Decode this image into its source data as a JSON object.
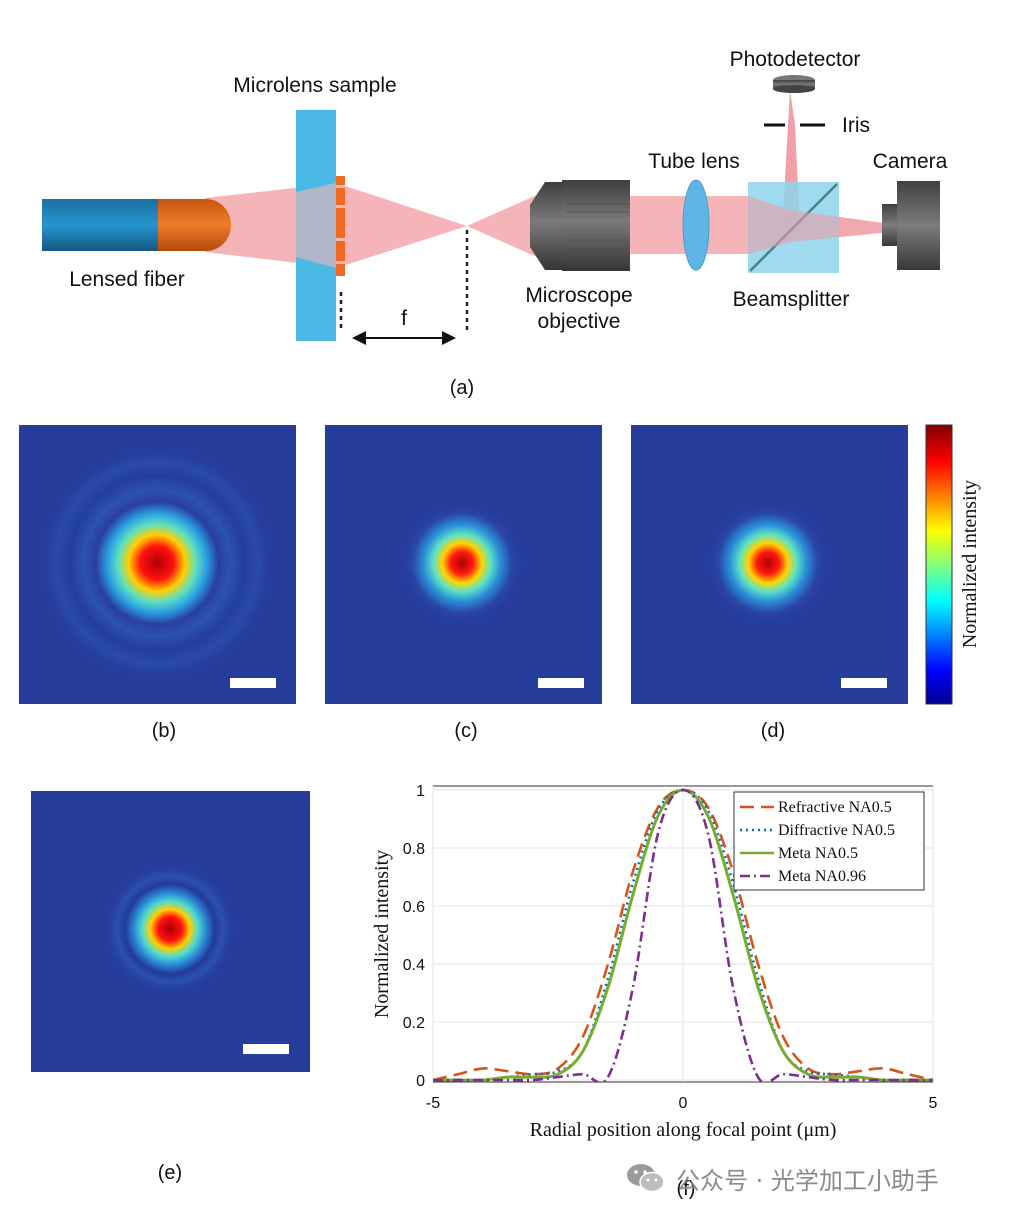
{
  "panel_a": {
    "labels": {
      "microlens_sample": "Microlens sample",
      "lensed_fiber": "Lensed fiber",
      "focal_length": "f",
      "microscope_objective_line1": "Microscope",
      "microscope_objective_line2": "objective",
      "tube_lens": "Tube lens",
      "photodetector": "Photodetector",
      "iris": "Iris",
      "camera": "Camera",
      "beamsplitter": "Beamsplitter"
    },
    "colors": {
      "beam": "#f4b4b8",
      "fiber_body": "#1a80b5",
      "fiber_tip": "#e86d1c",
      "sample": "#4ab9e6",
      "lens_pattern": "#f06a24",
      "objective": "#5a5a5a",
      "beamsplitter": "#8fd4ec"
    }
  },
  "captions": {
    "a": "(a)",
    "b": "(b)",
    "c": "(c)",
    "d": "(d)",
    "e": "(e)",
    "f": "(f)"
  },
  "colorbar": {
    "label": "Normalized intensity",
    "colormap": "jet"
  },
  "chart_data": {
    "type": "line",
    "xlabel": "Radial position along focal point (μm)",
    "ylabel": "Normalized intensity",
    "xlim": [
      -5,
      5
    ],
    "ylim": [
      0,
      1
    ],
    "xticks": [
      -5,
      0,
      5
    ],
    "yticks": [
      0,
      0.2,
      0.4,
      0.6,
      0.8,
      1
    ],
    "ytick_labels": [
      "0",
      "0.2",
      "0.4",
      "0.6",
      "0.8",
      "1"
    ],
    "grid": true,
    "legend_position": "top-right",
    "x": [
      -5,
      -4.5,
      -4,
      -3.5,
      -3,
      -2.5,
      -2,
      -1.5,
      -1,
      -0.5,
      0,
      0.5,
      1,
      1.5,
      2,
      2.5,
      3,
      3.5,
      4,
      4.5,
      5
    ],
    "series": [
      {
        "name": "Refractive NA0.5",
        "color": "#d95319",
        "style": "dashed",
        "values": [
          0.0,
          0.02,
          0.04,
          0.03,
          0.02,
          0.04,
          0.15,
          0.4,
          0.72,
          0.94,
          1.0,
          0.94,
          0.72,
          0.4,
          0.15,
          0.04,
          0.02,
          0.03,
          0.04,
          0.02,
          0.0
        ]
      },
      {
        "name": "Diffractive NA0.5",
        "color": "#0072bd",
        "style": "dotted",
        "values": [
          0.0,
          0.0,
          0.0,
          0.01,
          0.02,
          0.03,
          0.1,
          0.35,
          0.68,
          0.93,
          1.0,
          0.93,
          0.68,
          0.35,
          0.1,
          0.03,
          0.02,
          0.01,
          0.0,
          0.0,
          0.0
        ]
      },
      {
        "name": "Meta NA0.5",
        "color": "#77ac30",
        "style": "solid",
        "values": [
          0.0,
          0.0,
          0.0,
          0.01,
          0.01,
          0.02,
          0.1,
          0.32,
          0.64,
          0.91,
          1.0,
          0.91,
          0.64,
          0.32,
          0.1,
          0.02,
          0.01,
          0.01,
          0.0,
          0.0,
          0.0
        ]
      },
      {
        "name": "Meta NA0.96",
        "color": "#7e2f8e",
        "style": "dashdot",
        "values": [
          0.0,
          0.0,
          0.0,
          0.0,
          0.0,
          0.01,
          0.02,
          0.01,
          0.32,
          0.85,
          1.0,
          0.85,
          0.32,
          0.01,
          0.02,
          0.01,
          0.0,
          0.0,
          0.0,
          0.0,
          0.0
        ]
      }
    ]
  },
  "watermark": {
    "text": "公众号 · 光学加工小助手"
  }
}
